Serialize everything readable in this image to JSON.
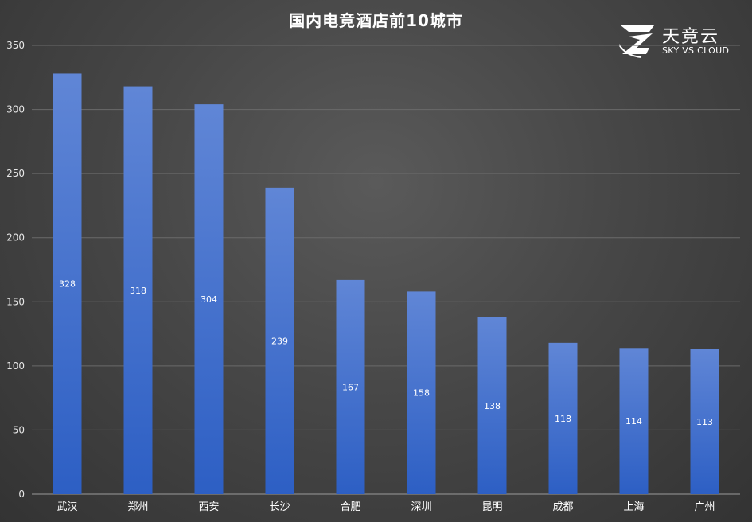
{
  "chart_data": {
    "type": "bar",
    "title": "国内电竞酒店前10城市",
    "categories": [
      "武汉",
      "郑州",
      "西安",
      "长沙",
      "合肥",
      "深圳",
      "昆明",
      "成都",
      "上海",
      "广州"
    ],
    "values": [
      328,
      318,
      304,
      239,
      167,
      158,
      138,
      118,
      114,
      113
    ],
    "ylim": [
      0,
      350
    ],
    "yticks": [
      0,
      50,
      100,
      150,
      200,
      250,
      300,
      350
    ],
    "grid": true,
    "data_labels": true,
    "bar_color_top": "#6086d6",
    "bar_color_bottom": "#2d5fc4"
  },
  "logo": {
    "name": "天竞云",
    "subtitle": "SKY VS CLOUD"
  }
}
